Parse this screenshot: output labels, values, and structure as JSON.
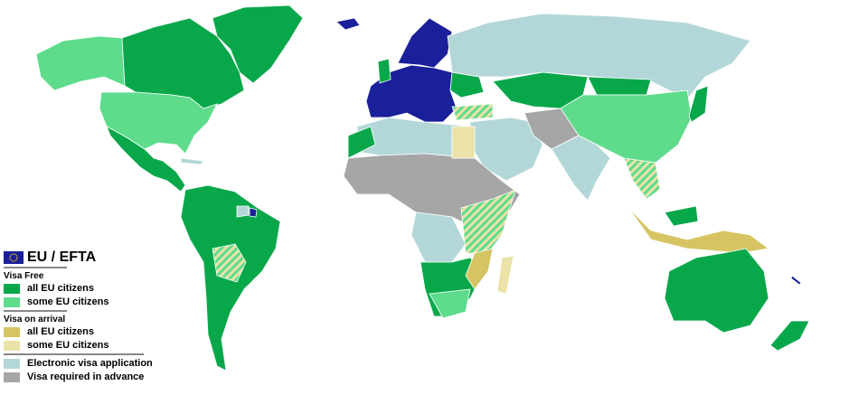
{
  "legend": {
    "title": "EU / EFTA",
    "sections": [
      {
        "heading": "Visa Free",
        "items": [
          {
            "label": "all EU citizens",
            "color": "#08a84a"
          },
          {
            "label": "some EU citizens",
            "color": "#5edc8c"
          }
        ]
      },
      {
        "heading": "Visa on arrival",
        "items": [
          {
            "label": "all EU citizens",
            "color": "#d6c463"
          },
          {
            "label": "some EU citizens",
            "color": "#ebe2a8"
          }
        ]
      },
      {
        "heading": "",
        "items": [
          {
            "label": "Electronic visa application",
            "color": "#b3d7d8"
          },
          {
            "label": "Visa required in advance",
            "color": "#a6a6a6"
          }
        ]
      }
    ]
  },
  "colors": {
    "eu_efta": "#1a1f9a",
    "border": "#ffffff"
  }
}
